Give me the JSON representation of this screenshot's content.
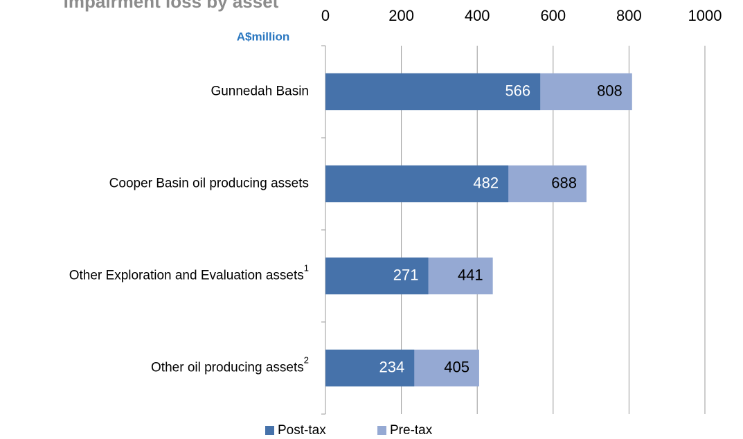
{
  "chart_data": {
    "type": "bar",
    "orientation": "horizontal",
    "overlap": true,
    "title": "Impairment loss by asset",
    "subtitle": "A$million",
    "categories": [
      "Gunnedah Basin",
      "Cooper Basin oil producing assets",
      "Other Exploration and Evaluation assets",
      "Other oil producing assets"
    ],
    "category_notes": [
      null,
      null,
      "1",
      "2"
    ],
    "series": [
      {
        "name": "Pre-tax",
        "color": "#95a9d3",
        "values": [
          808,
          688,
          441,
          405
        ]
      },
      {
        "name": "Post-tax",
        "color": "#4672aa",
        "values": [
          566,
          482,
          271,
          234
        ]
      }
    ],
    "xlim": [
      0,
      1000
    ],
    "xticks": [
      0,
      200,
      400,
      600,
      800,
      1000
    ],
    "grid": true,
    "legend": "bottom"
  }
}
